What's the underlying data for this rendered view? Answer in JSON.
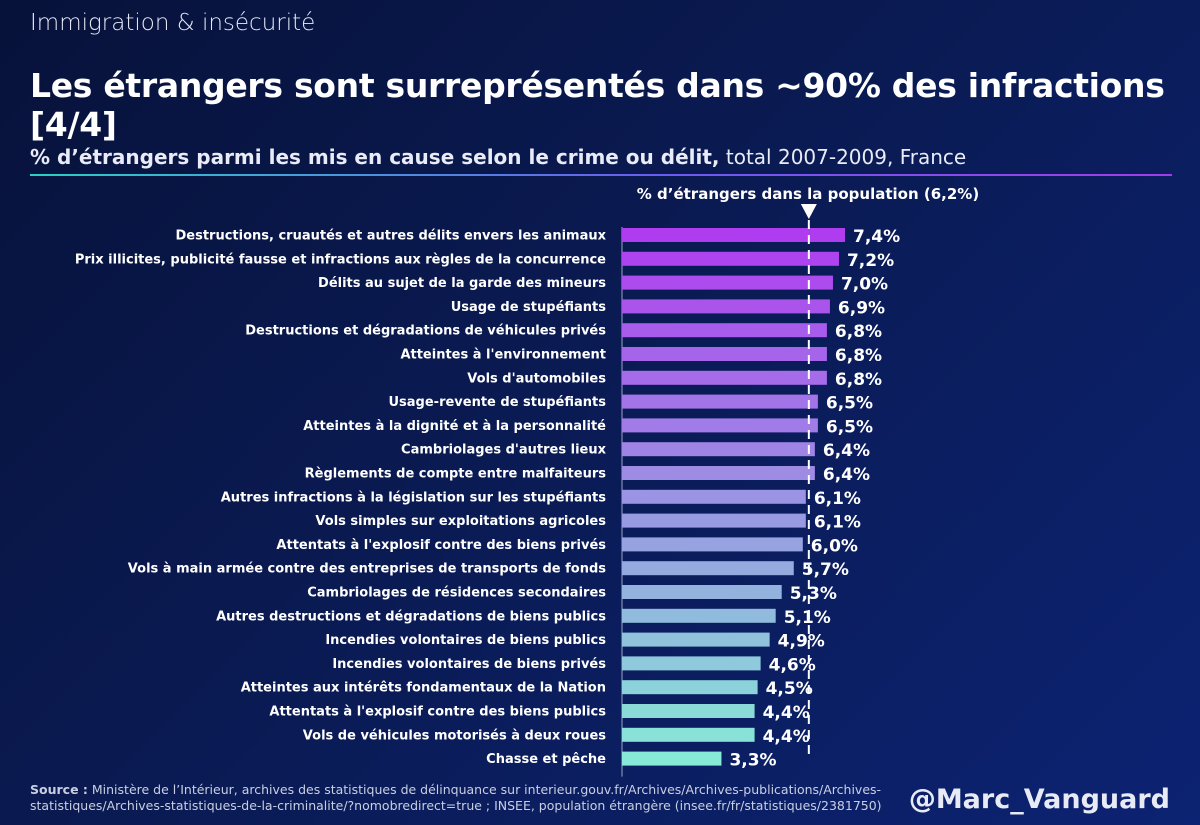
{
  "header": {
    "kicker": "Immigration & insécurité",
    "title": "Les étrangers sont surreprésentés dans ~90% des infractions [4/4]",
    "subtitle_strong": "% d’étrangers parmi les mis en cause selon le crime ou délit,",
    "subtitle_rest": " total 2007-2009, France"
  },
  "chart_data": {
    "type": "bar",
    "orientation": "horizontal",
    "categories": [
      "Destructions, cruautés et autres délits envers les animaux",
      "Prix illicites, publicité fausse et infractions aux règles de la concurrence",
      "Délits au sujet de la garde des mineurs",
      "Usage de stupéfiants",
      "Destructions et dégradations de véhicules privés",
      "Atteintes à l'environnement",
      "Vols d'automobiles",
      "Usage-revente de stupéfiants",
      "Atteintes à la dignité et à la personnalité",
      "Cambriolages d'autres lieux",
      "Règlements de compte entre malfaiteurs",
      "Autres infractions à la législation sur les stupéfiants",
      "Vols simples sur exploitations agricoles",
      "Attentats à l'explosif contre des biens privés",
      "Vols à main armée contre des entreprises de transports de fonds",
      "Cambriolages de résidences secondaires",
      "Autres destructions et dégradations de biens publics",
      "Incendies volontaires de biens publics",
      "Incendies volontaires de biens privés",
      "Atteintes aux intérêts fondamentaux de la Nation",
      "Attentats à l'explosif contre des biens publics",
      "Vols de véhicules motorisés à deux roues",
      "Chasse et pêche"
    ],
    "values": [
      7.4,
      7.2,
      7.0,
      6.9,
      6.8,
      6.8,
      6.8,
      6.5,
      6.5,
      6.4,
      6.4,
      6.1,
      6.1,
      6.0,
      5.7,
      5.3,
      5.1,
      4.9,
      4.6,
      4.5,
      4.4,
      4.4,
      3.3
    ],
    "value_labels": [
      "7,4%",
      "7,2%",
      "7,0%",
      "6,9%",
      "6,8%",
      "6,8%",
      "6,8%",
      "6,5%",
      "6,5%",
      "6,4%",
      "6,4%",
      "6,1%",
      "6,1%",
      "6,0%",
      "5,7%",
      "5,3%",
      "5,1%",
      "4,9%",
      "4,6%",
      "4,5%",
      "4,4%",
      "4,4%",
      "3,3%"
    ],
    "reference": {
      "value": 6.2,
      "label": "% d’étrangers dans la population (6,2%)"
    },
    "xlim": [
      0,
      7.4
    ],
    "colors": {
      "start": "#b03cf0",
      "end": "#86ead6"
    }
  },
  "footer": {
    "source_label": "Source :",
    "source_text": " Ministère de l’Intérieur, archives des statistiques de délinquance sur interieur.gouv.fr/Archives/Archives-publications/Archives-statistiques/Archives-statistiques-de-la-criminalite/?nomobredirect=true ; INSEE, population étrangère (insee.fr/fr/statistiques/2381750)",
    "handle": "@Marc_Vanguard"
  }
}
